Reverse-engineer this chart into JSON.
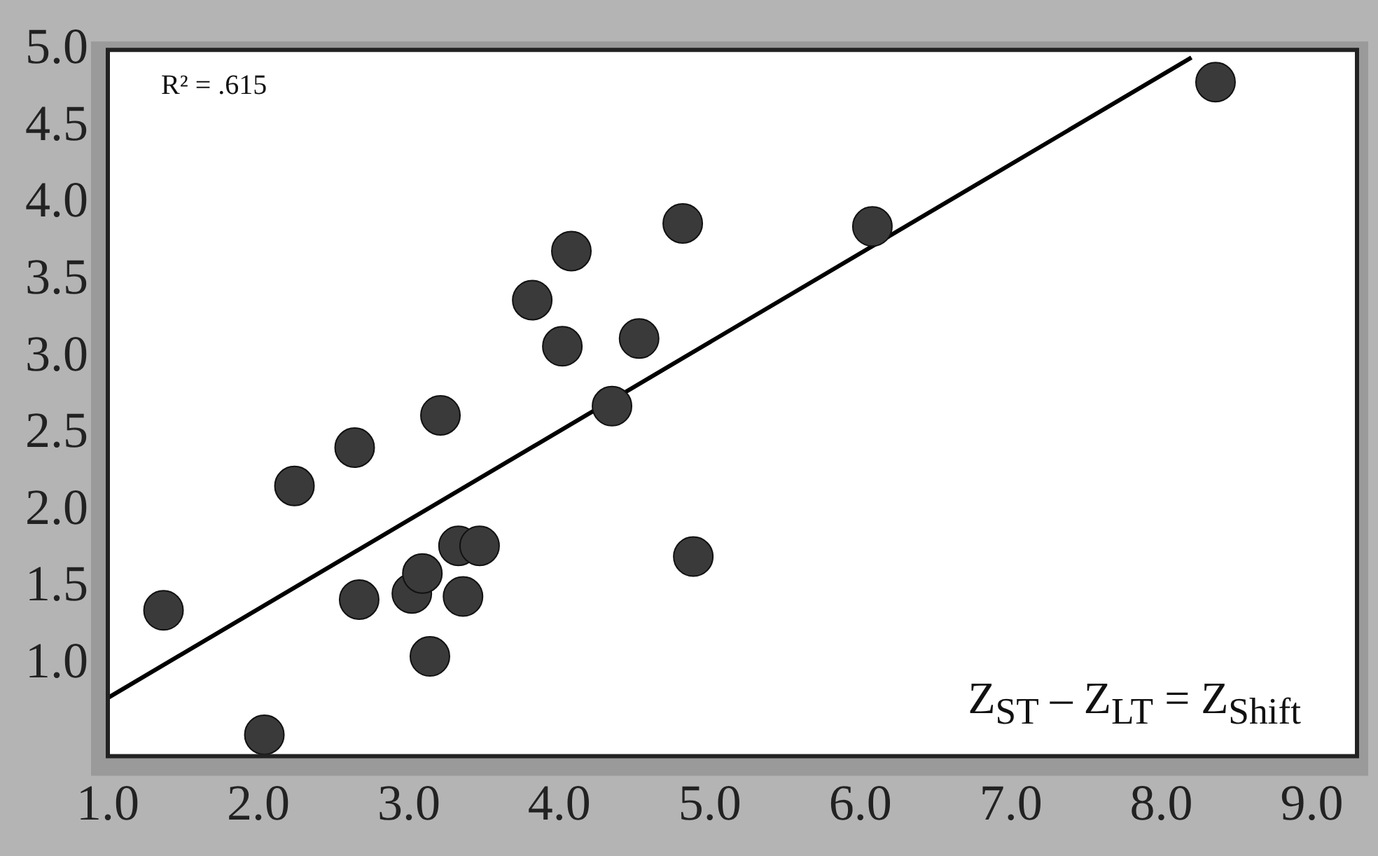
{
  "chart_data": {
    "type": "scatter",
    "annotations": [
      "R² = .615",
      "Z$_{ST}$ – Z$_{LT}$ = Z$_{Shift}$"
    ],
    "xlim": [
      1.0,
      9.3
    ],
    "xticks": [
      {
        "value": 1,
        "label": "1.0"
      },
      {
        "value": 2,
        "label": "2.0"
      },
      {
        "value": 3,
        "label": "3.0"
      },
      {
        "value": 4,
        "label": "4.0"
      },
      {
        "value": 5,
        "label": "5.0"
      },
      {
        "value": 6,
        "label": "6.0"
      },
      {
        "value": 7,
        "label": "7.0"
      },
      {
        "value": 8,
        "label": "8.0"
      },
      {
        "value": 9,
        "label": "9.0"
      }
    ],
    "ylim": [
      0.4,
      5.0
    ],
    "yticks": [
      {
        "value": 1,
        "label": "1.0"
      },
      {
        "value": 1.5,
        "label": "1.5"
      },
      {
        "value": 2,
        "label": "2.0"
      },
      {
        "value": 2.5,
        "label": "2.5"
      },
      {
        "value": 3,
        "label": "3.0"
      },
      {
        "value": 3.5,
        "label": "3.5"
      },
      {
        "value": 4,
        "label": "4.0"
      },
      {
        "value": 4.5,
        "label": "4.5"
      },
      {
        "value": 5,
        "label": "5.0"
      }
    ],
    "grid": false,
    "legend": false,
    "marker": "circle",
    "series": [
      {
        "color": "#3a3a3a",
        "x": [
          1.37,
          2.04,
          2.24,
          2.64,
          2.67,
          3.02,
          3.09,
          3.14,
          3.21,
          3.33,
          3.36,
          3.47,
          3.82,
          4.02,
          4.08,
          4.35,
          4.53,
          4.82,
          4.89,
          6.08,
          8.36
        ],
        "values": [
          1.35,
          0.54,
          2.16,
          2.41,
          1.42,
          1.46,
          1.59,
          1.05,
          2.62,
          1.77,
          1.44,
          1.77,
          3.37,
          3.07,
          3.69,
          2.68,
          3.12,
          3.87,
          1.7,
          3.85,
          4.79
        ]
      },
      {
        "type": "line",
        "marker": "none",
        "color": "#000000",
        "x": [
          1.0,
          8.2
        ],
        "values": [
          0.78,
          4.95
        ]
      }
    ]
  }
}
